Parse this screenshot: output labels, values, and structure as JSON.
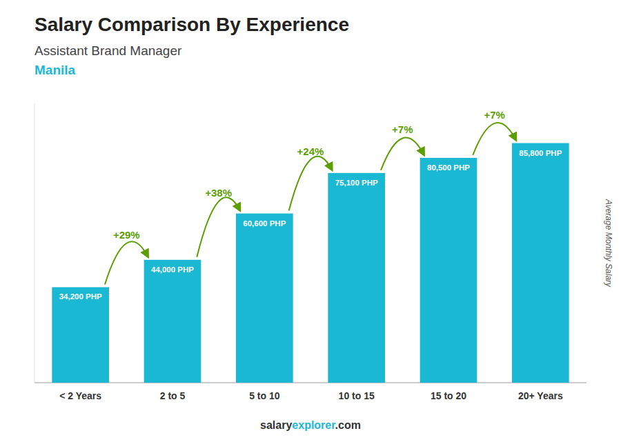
{
  "chart_data": {
    "type": "bar",
    "title": "Salary Comparison By Experience",
    "subtitle": "Assistant Brand Manager",
    "ylabel": "Average Monthly Salary",
    "annotations": [
      "Manila",
      "salary",
      "explorer",
      ".com"
    ],
    "categories": [
      "< 2 Years",
      "2 to 5",
      "5 to 10",
      "10 to 15",
      "15 to 20",
      "20+ Years"
    ],
    "values": [
      34200,
      44000,
      60600,
      75100,
      80500,
      85800
    ],
    "value_labels": [
      "34,200 PHP",
      "44,000 PHP",
      "60,600 PHP",
      "75,100 PHP",
      "80,500 PHP",
      "85,800 PHP"
    ],
    "change_labels": [
      null,
      "+29%",
      "+38%",
      "+24%",
      "+7%",
      "+7%"
    ],
    "color": "#1BB8D4",
    "ylim": [
      0,
      100000
    ],
    "grid": false,
    "data_labels": true,
    "tick_labels": "x"
  }
}
